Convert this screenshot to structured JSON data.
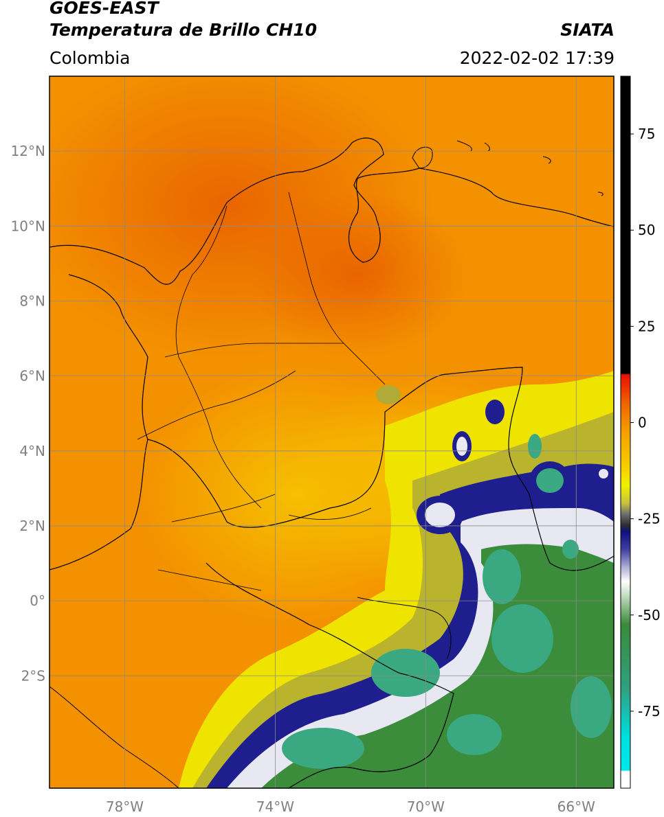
{
  "header": {
    "line1": "GOES-EAST",
    "line2": "Temperatura de Brillo CH10",
    "region": "Colombia",
    "agency": "SIATA",
    "datetime": "2022-02-02 17:39"
  },
  "map": {
    "lon_range": [
      -80,
      -65
    ],
    "lat_range": [
      -5,
      14
    ],
    "lon_ticks": [
      {
        "value": -78,
        "label": "78°W"
      },
      {
        "value": -74,
        "label": "74°W"
      },
      {
        "value": -70,
        "label": "70°W"
      },
      {
        "value": -66,
        "label": "66°W"
      }
    ],
    "lat_ticks": [
      {
        "value": 12,
        "label": "12°N"
      },
      {
        "value": 10,
        "label": "10°N"
      },
      {
        "value": 8,
        "label": "8°N"
      },
      {
        "value": 6,
        "label": "6°N"
      },
      {
        "value": 4,
        "label": "4°N"
      },
      {
        "value": 2,
        "label": "2°N"
      },
      {
        "value": 0,
        "label": "0°"
      },
      {
        "value": -2,
        "label": "2°S"
      }
    ],
    "gridlines": true,
    "colors": {
      "warm": "#f07c00",
      "mid": "#f7a800",
      "yellow": "#f0e800",
      "olive": "#a8a830",
      "navy": "#1a1a8c",
      "white": "#f4f4f4",
      "green": "#3a8a3a",
      "teal": "#3aaa80"
    }
  },
  "colorbar": {
    "range": [
      -95,
      90
    ],
    "ticks": [
      {
        "value": 75,
        "label": "75"
      },
      {
        "value": 50,
        "label": "50"
      },
      {
        "value": 25,
        "label": "25"
      },
      {
        "value": 0,
        "label": "0"
      },
      {
        "value": -25,
        "label": "-25"
      },
      {
        "value": -50,
        "label": "-50"
      },
      {
        "value": -75,
        "label": "-75"
      }
    ]
  }
}
